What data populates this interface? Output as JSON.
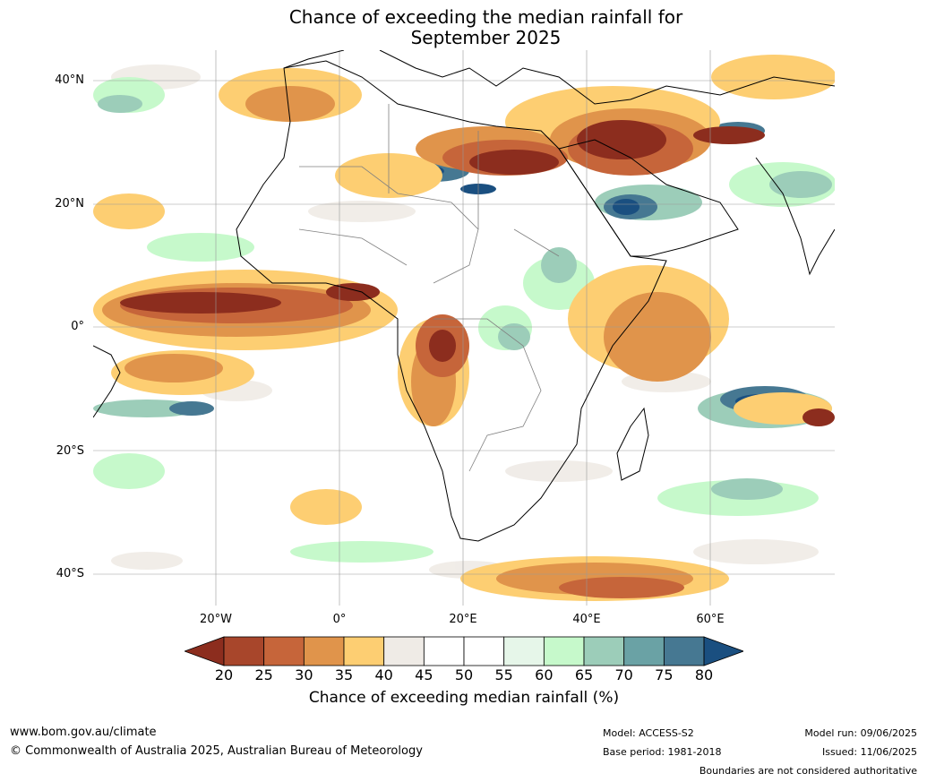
{
  "title_line1": "Chance of exceeding the median rainfall for",
  "title_line2": "September 2025",
  "lat_labels": [
    "40°N",
    "20°N",
    "0°",
    "20°S",
    "40°S"
  ],
  "lon_labels": [
    "20°W",
    "0°",
    "20°E",
    "40°E",
    "60°E"
  ],
  "colorbar": {
    "label": "Chance of exceeding median rainfall (%)",
    "ticks": [
      "20",
      "25",
      "30",
      "35",
      "40",
      "45",
      "50",
      "55",
      "60",
      "65",
      "70",
      "75",
      "80"
    ],
    "colors": [
      "#8c2d1e",
      "#a8462b",
      "#c6653a",
      "#e0944b",
      "#fdce72",
      "#efebe6",
      "#ffffff",
      "#ffffff",
      "#e6f6e9",
      "#c6f9cb",
      "#9ccdb9",
      "#6aa2a5",
      "#467892",
      "#1a4f80"
    ]
  },
  "footer": {
    "website": "www.bom.gov.au/climate",
    "copyright": "© Commonwealth of Australia 2025, Australian Bureau of Meteorology",
    "model": "Model: ACCESS-S2",
    "base_period": "Base period: 1981-2018",
    "model_run": "Model run: 09/06/2025",
    "issued": "Issued: 11/06/2025",
    "disclaimer": "Boundaries are not considered authoritative"
  }
}
